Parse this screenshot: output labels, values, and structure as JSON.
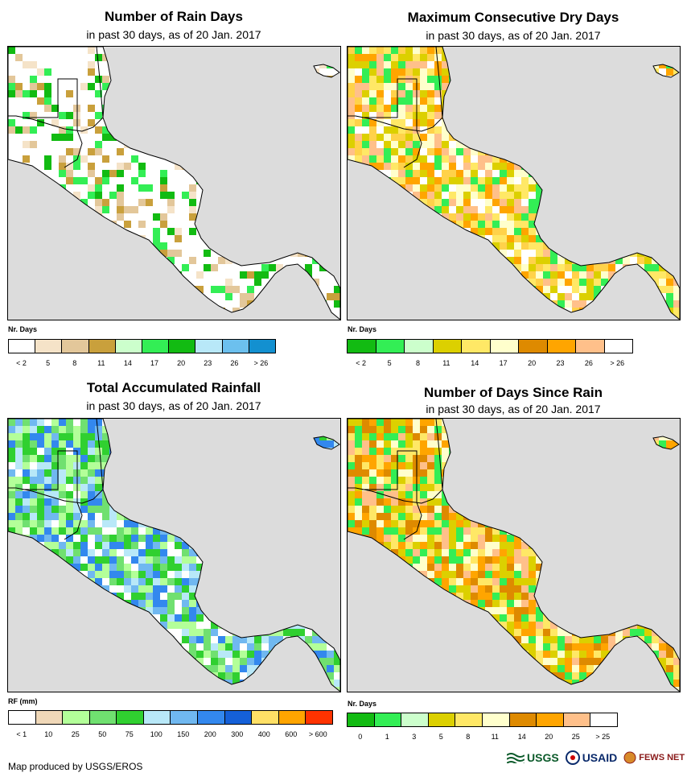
{
  "panels": [
    {
      "title": "Number of Rain Days",
      "subtitle": "in past 30 days, as of 20 Jan. 2017",
      "legend_label": "Nr. Days",
      "legend_colors": [
        "#ffffff",
        "#f5e3c8",
        "#e3c79a",
        "#c9a03c",
        "#ccffcc",
        "#33ee55",
        "#12bb12",
        "#b8e8f8",
        "#6cc0ee",
        "#1390d0"
      ],
      "legend_ticks": [
        "< 2",
        "5",
        "8",
        "11",
        "14",
        "17",
        "20",
        "23",
        "26",
        "> 26"
      ],
      "palette": [
        "#ffffff",
        "#f5e3c8",
        "#e3c79a",
        "#c9a03c",
        "#33ee55",
        "#12bb12"
      ]
    },
    {
      "title": "Maximum Consecutive Dry Days",
      "subtitle": "in past 30 days, as of 20 Jan. 2017",
      "legend_label": "Nr. Days",
      "legend_colors": [
        "#12bb12",
        "#33ee55",
        "#ccffcc",
        "#dcd000",
        "#ffe866",
        "#ffffcc",
        "#de8a00",
        "#ffa500",
        "#ffc08a",
        "#ffffff"
      ],
      "legend_ticks": [
        "< 2",
        "5",
        "8",
        "11",
        "14",
        "17",
        "20",
        "23",
        "26",
        "> 26"
      ],
      "palette": [
        "#ffe866",
        "#ffd24a",
        "#ffc08a",
        "#ffa500",
        "#dcd000",
        "#ffffcc",
        "#33ee55",
        "#ffffff"
      ]
    },
    {
      "title": "Total Accumulated Rainfall",
      "subtitle": "in past 30 days, as of 20 Jan. 2017",
      "legend_label": "RF (mm)",
      "legend_colors": [
        "#ffffff",
        "#f0d8b8",
        "#b3ff99",
        "#70e070",
        "#30d030",
        "#b8e8f8",
        "#70b8f0",
        "#3388ee",
        "#1560d8",
        "#ffe066",
        "#ffa500",
        "#ff3300"
      ],
      "legend_ticks": [
        "< 1",
        "10",
        "25",
        "50",
        "75",
        "100",
        "150",
        "200",
        "300",
        "400",
        "600",
        "> 600"
      ],
      "palette": [
        "#ffffff",
        "#b3ff99",
        "#70e070",
        "#30d030",
        "#b8e8f8",
        "#70b8f0",
        "#3388ee"
      ]
    },
    {
      "title": "Number of Days Since Rain",
      "subtitle": "in past 30 days, as of 20 Jan. 2017",
      "legend_label": "Nr. Days",
      "legend_colors": [
        "#12bb12",
        "#33ee55",
        "#ccffcc",
        "#dcd000",
        "#ffe866",
        "#ffffcc",
        "#de8a00",
        "#ffa500",
        "#ffc08a",
        "#ffffff"
      ],
      "legend_ticks": [
        "0",
        "1",
        "3",
        "5",
        "8",
        "11",
        "14",
        "20",
        "25",
        "> 25"
      ],
      "palette": [
        "#de8a00",
        "#ffc08a",
        "#ffa500",
        "#ffffcc",
        "#dcd000",
        "#ffe866",
        "#33ee55"
      ]
    }
  ],
  "footer": "Map produced by USGS/EROS",
  "logos": {
    "usgs": "USGS",
    "usaid": "USAID",
    "fews": "FEWS NET"
  },
  "colors": {
    "ocean": "#dcdcdc",
    "coast": "#000000"
  }
}
